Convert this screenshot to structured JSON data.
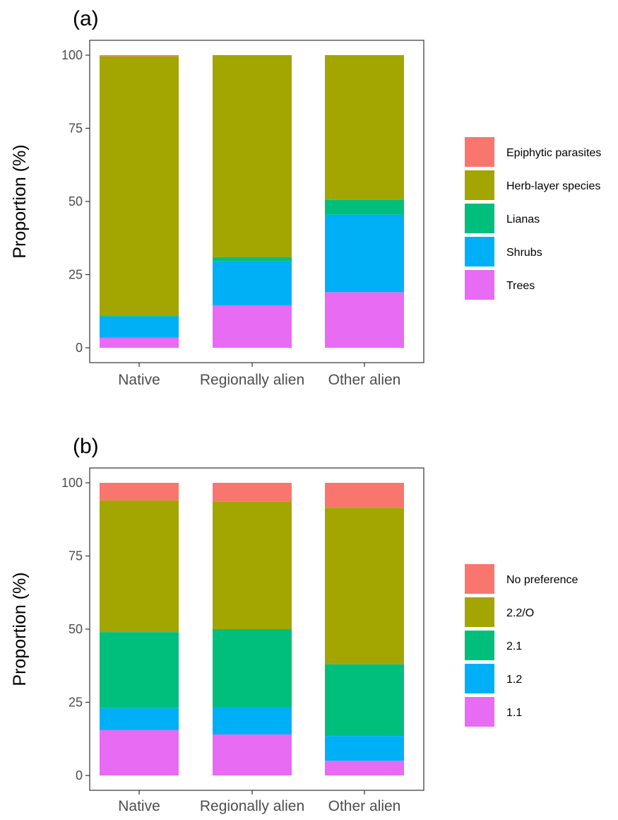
{
  "chart_data": [
    {
      "type": "bar",
      "stacked": true,
      "title": "(a)",
      "xlabel": "",
      "ylabel": "Proportion (%)",
      "ylim": [
        0,
        100
      ],
      "yticks": [
        0,
        25,
        50,
        75,
        100
      ],
      "grid": false,
      "legend_position": "right",
      "categories": [
        "Native",
        "Regionally alien",
        "Other alien"
      ],
      "series": [
        {
          "name": "Trees",
          "color": "#E76BF3",
          "values": [
            3.5,
            14.5,
            19
          ]
        },
        {
          "name": "Shrubs",
          "color": "#00B0F6",
          "values": [
            7.2,
            15,
            26.5
          ]
        },
        {
          "name": "Lianas",
          "color": "#00BF7D",
          "values": [
            0.3,
            1.5,
            5
          ]
        },
        {
          "name": "Herb-layer species",
          "color": "#A3A500",
          "values": [
            88.6,
            69,
            49.5
          ]
        },
        {
          "name": "Epiphytic parasites",
          "color": "#F8766D",
          "values": [
            0.4,
            0,
            0
          ]
        }
      ],
      "legend_order": [
        "Epiphytic parasites",
        "Herb-layer species",
        "Lianas",
        "Shrubs",
        "Trees"
      ]
    },
    {
      "type": "bar",
      "stacked": true,
      "title": "(b)",
      "xlabel": "",
      "ylabel": "Proportion (%)",
      "ylim": [
        0,
        100
      ],
      "yticks": [
        0,
        25,
        50,
        75,
        100
      ],
      "grid": false,
      "legend_position": "right",
      "categories": [
        "Native",
        "Regionally alien",
        "Other alien"
      ],
      "series": [
        {
          "name": "1.1",
          "color": "#E76BF3",
          "values": [
            15.5,
            14,
            5
          ]
        },
        {
          "name": "1.2",
          "color": "#00B0F6",
          "values": [
            7.5,
            9.3,
            8.5
          ]
        },
        {
          "name": "2.1",
          "color": "#00BF7D",
          "values": [
            26,
            26.7,
            24.5
          ]
        },
        {
          "name": "2.2/O",
          "color": "#A3A500",
          "values": [
            45,
            43.5,
            53.5
          ]
        },
        {
          "name": "No preference",
          "color": "#F8766D",
          "values": [
            6,
            6.5,
            8.5
          ]
        }
      ],
      "legend_order": [
        "No preference",
        "2.2/O",
        "2.1",
        "1.2",
        "1.1"
      ]
    }
  ]
}
